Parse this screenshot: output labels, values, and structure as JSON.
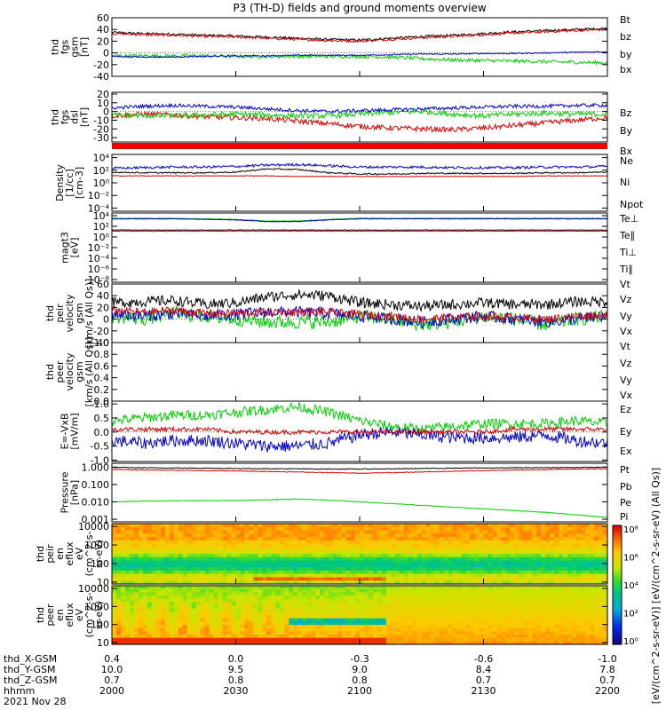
{
  "chart_data": {
    "type": "line",
    "title": "P3 (TH-D) fields and ground moments overview",
    "colors": {
      "black": "#000000",
      "red": "#e00000",
      "green": "#00d000",
      "blue": "#0000d0"
    },
    "panels": [
      {
        "id": "fgs-gsm",
        "ylabel": [
          "thd",
          "fgs",
          "gsm",
          "[nT]"
        ],
        "scale": "linear",
        "ylim": [
          -40,
          60
        ],
        "ticks": [
          "60",
          "40",
          "20",
          "0",
          "-20",
          "-40"
        ],
        "tick_values": [
          60,
          40,
          20,
          0,
          -20,
          -40
        ],
        "legend": [
          "Bt",
          "bz",
          "by",
          "bx"
        ],
        "legend_colors": [
          "black",
          "red",
          "green",
          "blue"
        ],
        "series": [
          {
            "name": "Bt",
            "color": "black",
            "values": [
              35,
              33,
              32,
              30,
              29,
              27,
              25,
              23,
              22,
              25,
              28,
              30,
              33,
              36,
              38,
              40,
              42
            ],
            "noise": 2
          },
          {
            "name": "bz",
            "color": "red",
            "values": [
              33,
              31,
              30,
              28,
              27,
              25,
              23,
              21,
              20,
              23,
              26,
              28,
              31,
              34,
              36,
              38,
              40
            ],
            "noise": 2
          },
          {
            "name": "by",
            "color": "green",
            "values": [
              -5,
              -5,
              -5,
              -5,
              -6,
              -6,
              -6,
              -6,
              -6,
              -7,
              -10,
              -12,
              -13,
              -14,
              -15,
              -16,
              -17
            ],
            "noise": 3
          },
          {
            "name": "bx",
            "color": "blue",
            "values": [
              -6,
              -7,
              -7,
              -6,
              -5,
              -5,
              -4,
              -4,
              -4,
              -3,
              -2,
              -2,
              -1,
              -1,
              0,
              1,
              2
            ],
            "noise": 1
          }
        ]
      },
      {
        "id": "fgs-dsl",
        "ylabel": [
          "thd",
          "fgs",
          "dsl",
          "[nT]"
        ],
        "scale": "linear",
        "ylim": [
          -35,
          22
        ],
        "ticks": [
          "20",
          "10",
          "0",
          "-10",
          "-20",
          "-30"
        ],
        "tick_values": [
          20,
          10,
          0,
          -10,
          -20,
          -30
        ],
        "legend": [
          "Bz",
          "By",
          "Bx"
        ],
        "legend_colors": [
          "red",
          "green",
          "blue"
        ],
        "series": [
          {
            "name": "Bz",
            "color": "red",
            "values": [
              -5,
              -3,
              -4,
              -6,
              -7,
              -8,
              -11,
              -14,
              -17,
              -19,
              -20,
              -21,
              -19,
              -16,
              -13,
              -10,
              -7
            ],
            "noise": 3
          },
          {
            "name": "By",
            "color": "green",
            "values": [
              -4,
              -5,
              -5,
              -4,
              -3,
              -4,
              -5,
              -5,
              -3,
              -1,
              0,
              -3,
              -5,
              -3,
              -2,
              -3,
              -3
            ],
            "noise": 3
          },
          {
            "name": "Bx",
            "color": "blue",
            "values": [
              4,
              6,
              7,
              6,
              5,
              3,
              1,
              0,
              1,
              2,
              3,
              4,
              5,
              6,
              6,
              7,
              7
            ],
            "noise": 2
          }
        ]
      },
      {
        "id": "density",
        "ylabel": [
          "Density",
          "[1/cc]",
          "[cm-3]"
        ],
        "scale": "log",
        "ylim": [
          -4.5,
          4.5
        ],
        "ticks": [
          "10⁴",
          "10²",
          "10⁰",
          "10⁻²",
          "10⁻⁴"
        ],
        "tick_values": [
          4,
          2,
          0,
          -2,
          -4
        ],
        "legend": [
          "Ne",
          "Ni",
          "Npot"
        ],
        "legend_colors": [
          "red",
          "black",
          "blue"
        ],
        "series": [
          {
            "name": "Npot",
            "color": "blue",
            "values": [
              2.3,
              2.4,
              2.5,
              2.5,
              2.6,
              2.8,
              2.9,
              2.7,
              2.5,
              2.5,
              2.5,
              2.4,
              2.4,
              2.4,
              2.5,
              2.5,
              2.6
            ],
            "noise": 0.2
          },
          {
            "name": "Ni",
            "color": "black",
            "values": [
              1.7,
              1.6,
              1.6,
              1.6,
              1.7,
              2.2,
              2.1,
              1.6,
              1.4,
              1.4,
              1.5,
              1.5,
              1.5,
              1.5,
              1.6,
              1.6,
              1.7
            ],
            "noise": 0.1
          },
          {
            "name": "Ne",
            "color": "red",
            "values": [
              1.1,
              1.1,
              1.1,
              1.1,
              1.1,
              1.1,
              1.0,
              1.0,
              1.0,
              1.0,
              1.0,
              1.0,
              1.0,
              1.0,
              1.1,
              1.1,
              1.1
            ],
            "noise": 0.05
          }
        ]
      },
      {
        "id": "temperature",
        "ylabel": [
          "magt3",
          "[eV]"
        ],
        "scale": "log",
        "ylim": [
          -8.5,
          4.5
        ],
        "ticks": [
          "10⁴",
          "10²",
          "10⁰",
          "10⁻²",
          "10⁻⁴",
          "10⁻⁶",
          "10⁻⁸"
        ],
        "tick_values": [
          4,
          2,
          0,
          -2,
          -4,
          -6,
          -8
        ],
        "legend": [
          "Te⊥",
          "Te∥",
          "Ti⊥",
          "Ti∥"
        ],
        "legend_colors": [
          "red",
          "black",
          "#e0c000",
          "green"
        ],
        "series": [
          {
            "name": "Ti∥",
            "color": "green",
            "values": [
              3.5,
              3.5,
              3.5,
              3.4,
              3.3,
              3.0,
              3.0,
              3.3,
              3.5,
              3.5,
              3.5,
              3.5,
              3.5,
              3.5,
              3.5,
              3.5,
              3.5
            ],
            "noise": 0.05
          },
          {
            "name": "Ti⊥",
            "color": "blue",
            "values": [
              3.4,
              3.4,
              3.4,
              3.3,
              3.2,
              2.9,
              2.9,
              3.2,
              3.4,
              3.4,
              3.4,
              3.4,
              3.4,
              3.4,
              3.4,
              3.4,
              3.4
            ],
            "noise": 0.05
          },
          {
            "name": "Te∥",
            "color": "black",
            "values": [
              1.3,
              1.3,
              1.3,
              1.3,
              1.3,
              1.3,
              1.3,
              1.3,
              1.3,
              1.3,
              1.3,
              1.3,
              1.3,
              1.3,
              1.3,
              1.3,
              1.3
            ],
            "noise": 0.05
          },
          {
            "name": "Te⊥",
            "color": "red",
            "values": [
              1.1,
              1.1,
              1.1,
              1.1,
              1.1,
              1.1,
              1.1,
              1.1,
              1.1,
              1.1,
              1.1,
              1.1,
              1.1,
              1.1,
              1.1,
              1.1,
              1.1
            ],
            "noise": 0.05
          }
        ]
      },
      {
        "id": "peir-velocity",
        "ylabel": [
          "thd",
          "peir",
          "velocity",
          "gsm",
          "[km/s (All Qs)]"
        ],
        "scale": "linear",
        "ylim": [
          -40,
          60
        ],
        "ticks": [
          "60",
          "40",
          "20",
          "0",
          "-20",
          "-40"
        ],
        "tick_values": [
          60,
          40,
          20,
          0,
          -20,
          -40
        ],
        "legend": [
          "Vt",
          "Vz",
          "Vy",
          "Vx"
        ],
        "legend_colors": [
          "black",
          "red",
          "green",
          "blue"
        ],
        "series": [
          {
            "name": "Vy",
            "color": "green",
            "values": [
              5,
              0,
              10,
              5,
              0,
              -5,
              -5,
              -5,
              5,
              0,
              -10,
              -5,
              5,
              0,
              -10,
              0,
              5
            ],
            "noise": 12
          },
          {
            "name": "Vx",
            "color": "blue",
            "values": [
              10,
              5,
              10,
              5,
              8,
              12,
              12,
              10,
              5,
              0,
              -5,
              0,
              5,
              0,
              -5,
              0,
              5
            ],
            "noise": 10
          },
          {
            "name": "Vz",
            "color": "red",
            "values": [
              15,
              12,
              15,
              10,
              10,
              12,
              12,
              12,
              8,
              5,
              0,
              3,
              5,
              3,
              0,
              5,
              8
            ],
            "noise": 7
          },
          {
            "name": "Vt",
            "color": "black",
            "values": [
              28,
              30,
              32,
              25,
              28,
              38,
              42,
              40,
              28,
              25,
              22,
              25,
              28,
              25,
              25,
              30,
              30
            ],
            "noise": 9
          }
        ]
      },
      {
        "id": "peer-velocity",
        "ylabel": [
          "thd",
          "peer",
          "velocity",
          "gsm",
          "[km/s (All Qs)]"
        ],
        "scale": "linear",
        "ylim": [
          0,
          1
        ],
        "ticks": [
          "1.0",
          "0.8",
          "0.6",
          "0.4",
          "0.2",
          "0.0"
        ],
        "tick_values": [
          1.0,
          0.8,
          0.6,
          0.4,
          0.2,
          0.0
        ],
        "legend": [
          "Vt",
          "Vz",
          "Vy",
          "Vx"
        ],
        "legend_colors": [
          "black",
          "red",
          "green",
          "blue"
        ],
        "series": []
      },
      {
        "id": "efield",
        "ylabel": [
          "E=-VxB",
          "[mV/m]"
        ],
        "scale": "linear",
        "ylim": [
          -1.05,
          1.1
        ],
        "ticks": [
          "1.0",
          "0.5",
          "0.0",
          "-0.5",
          "-1.0"
        ],
        "tick_values": [
          1.0,
          0.5,
          0.0,
          -0.5,
          -1.0
        ],
        "legend": [
          "Ez",
          "Ey",
          "Ex"
        ],
        "legend_colors": [
          "red",
          "green",
          "blue"
        ],
        "series": [
          {
            "name": "Ey",
            "color": "green",
            "values": [
              0.4,
              0.5,
              0.6,
              0.6,
              0.7,
              0.8,
              0.9,
              0.7,
              0.4,
              0.2,
              0.1,
              0.2,
              0.3,
              0.3,
              0.3,
              0.4,
              0.3
            ],
            "noise": 0.18
          },
          {
            "name": "Ex",
            "color": "blue",
            "values": [
              -0.3,
              -0.4,
              -0.3,
              -0.3,
              -0.4,
              -0.5,
              -0.5,
              -0.4,
              -0.1,
              0.0,
              -0.1,
              -0.2,
              -0.2,
              -0.2,
              -0.1,
              -0.3,
              -0.4
            ],
            "noise": 0.22
          },
          {
            "name": "Ez",
            "color": "red",
            "values": [
              0.1,
              0.1,
              0.1,
              0.1,
              0.0,
              0.0,
              0.0,
              0.0,
              0.0,
              0.0,
              0.0,
              0.0,
              0.0,
              0.1,
              0.1,
              0.1,
              0.1
            ],
            "noise": 0.08
          }
        ]
      },
      {
        "id": "pressure",
        "ylabel": [
          "Pressure",
          "[nPa]"
        ],
        "scale": "log",
        "ylim": [
          -3.15,
          0.22
        ],
        "ticks": [
          "1.000",
          "0.100",
          "0.010",
          "0.001"
        ],
        "tick_values": [
          0,
          -1,
          -2,
          -3
        ],
        "legend": [
          "Pt",
          "Pb",
          "Pe",
          "Pi"
        ],
        "legend_colors": [
          "black",
          "red",
          "green",
          "blue"
        ],
        "series": [
          {
            "name": "Pt",
            "color": "black",
            "values": [
              -0.02,
              -0.04,
              -0.05,
              -0.06,
              -0.08,
              -0.09,
              -0.1,
              -0.11,
              -0.11,
              -0.1,
              -0.08,
              -0.06,
              -0.05,
              -0.04,
              -0.03,
              -0.02,
              -0.01
            ],
            "noise": 0.02
          },
          {
            "name": "Pb",
            "color": "red",
            "values": [
              -0.14,
              -0.16,
              -0.18,
              -0.2,
              -0.22,
              -0.25,
              -0.28,
              -0.32,
              -0.35,
              -0.32,
              -0.28,
              -0.24,
              -0.2,
              -0.17,
              -0.14,
              -0.11,
              -0.09
            ],
            "noise": 0.02
          },
          {
            "name": "Pe",
            "color": "green",
            "values": [
              -2.0,
              -1.96,
              -1.94,
              -1.93,
              -1.92,
              -1.88,
              -1.84,
              -1.9,
              -2.0,
              -2.1,
              -2.2,
              -2.3,
              -2.4,
              -2.5,
              -2.6,
              -2.75,
              -2.9
            ],
            "noise": 0.02
          }
        ]
      },
      {
        "id": "peir-spec",
        "ylabel": [
          "thd",
          "peir",
          "en",
          "eflux",
          "eV",
          "(cm^2-s-",
          "sr-eV)"
        ],
        "scale": "log",
        "ylim": [
          0.9,
          4.15
        ],
        "ticks": [
          "10000",
          "1000",
          "100",
          "10"
        ],
        "tick_values": [
          4,
          3,
          2,
          1
        ],
        "spectrogram": "ion"
      },
      {
        "id": "peer-spec",
        "ylabel": [
          "thd",
          "peer",
          "en",
          "eflux",
          "eV",
          "(cm^2-s-",
          "sr-eV)"
        ],
        "scale": "log",
        "ylim": [
          0.9,
          4.15
        ],
        "ticks": [
          "10000",
          "1000",
          "100",
          "10"
        ],
        "tick_values": [
          4,
          3,
          2,
          1
        ],
        "spectrogram": "electron"
      }
    ],
    "colorbar": {
      "label": "[eV/(cm^2-s-sr-eV)] [eV/(cm^2-s-sr-eV) (All Qs)]",
      "ticks": [
        "10⁸",
        "10⁶",
        "10⁴",
        "10²",
        "10⁰"
      ]
    },
    "x_axis": {
      "rows": [
        {
          "label": "thd_X-GSM",
          "values": [
            "0.4",
            "0.0",
            "-0.3",
            "-0.6",
            "-1.0"
          ]
        },
        {
          "label": "thd_Y-GSM",
          "values": [
            "10.0",
            "9.5",
            "9.0",
            "8.4",
            "7.8"
          ]
        },
        {
          "label": "thd_Z-GSM",
          "values": [
            "0.7",
            "0.8",
            "0.8",
            "0.7",
            "0.7"
          ]
        },
        {
          "label": "hhmm",
          "values": [
            "2000",
            "2030",
            "2100",
            "2130",
            "2200"
          ]
        }
      ],
      "date": "2021 Nov 28"
    }
  }
}
